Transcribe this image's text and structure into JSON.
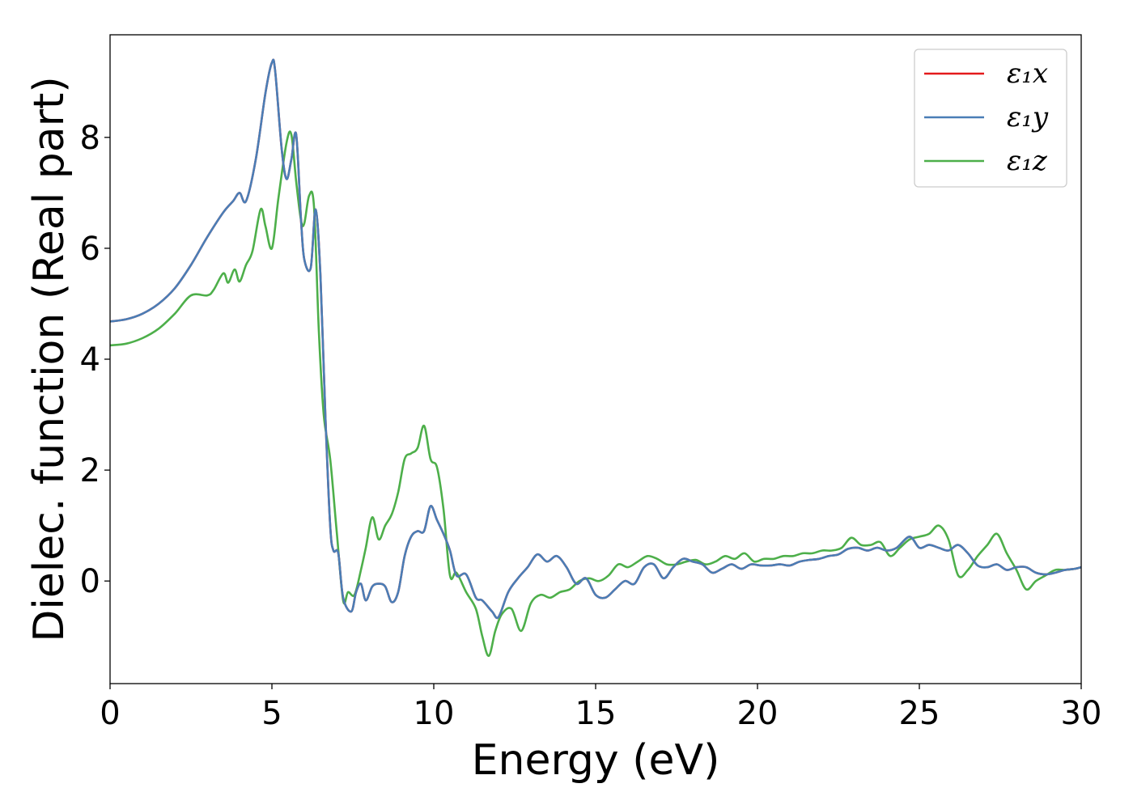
{
  "chart_data": {
    "type": "line",
    "xlabel": "Energy (eV)",
    "ylabel": "Dielec. function (Real part)",
    "xlim": [
      0,
      30
    ],
    "ylim": [
      -1.85,
      9.85
    ],
    "xticks": [
      0,
      5,
      10,
      15,
      20,
      25,
      30
    ],
    "yticks": [
      0,
      2,
      4,
      6,
      8
    ],
    "grid": false,
    "legend_position": "top-right",
    "series": [
      {
        "name": "ε₁x",
        "color": "#e41a1c",
        "x": [
          0,
          0.5,
          1,
          1.5,
          2,
          2.5,
          3,
          3.5,
          3.8,
          4,
          4.2,
          4.5,
          4.8,
          5,
          5.1,
          5.3,
          5.45,
          5.6,
          5.75,
          5.9,
          6,
          6.2,
          6.35,
          6.5,
          6.65,
          6.8,
          6.9,
          7.05,
          7.2,
          7.45,
          7.6,
          7.75,
          7.9,
          8.1,
          8.3,
          8.5,
          8.7,
          8.9,
          9.1,
          9.3,
          9.5,
          9.7,
          9.9,
          10.1,
          10.3,
          10.5,
          10.7,
          11,
          11.3,
          11.5,
          11.8,
          12,
          12.3,
          12.6,
          12.9,
          13.2,
          13.5,
          13.8,
          14.1,
          14.4,
          14.7,
          15,
          15.3,
          15.6,
          15.9,
          16.2,
          16.5,
          16.8,
          17.1,
          17.4,
          17.7,
          18,
          18.3,
          18.6,
          18.9,
          19.2,
          19.5,
          19.8,
          20.1,
          20.4,
          20.7,
          21,
          21.3,
          21.6,
          21.9,
          22.2,
          22.5,
          22.8,
          23.1,
          23.4,
          23.7,
          24,
          24.3,
          24.7,
          25,
          25.3,
          25.6,
          25.9,
          26.2,
          26.5,
          26.8,
          27.1,
          27.4,
          27.7,
          28,
          28.3,
          28.6,
          28.9,
          29.2,
          29.5,
          29.8,
          30
        ],
        "y": [
          4.68,
          4.72,
          4.82,
          5.0,
          5.28,
          5.7,
          6.2,
          6.65,
          6.85,
          7.0,
          6.85,
          7.6,
          8.8,
          9.35,
          9.2,
          7.8,
          7.25,
          7.6,
          8.05,
          6.5,
          5.8,
          5.65,
          6.7,
          5.5,
          3.0,
          1.0,
          0.55,
          0.5,
          -0.3,
          -0.55,
          -0.2,
          -0.05,
          -0.35,
          -0.1,
          -0.05,
          -0.1,
          -0.38,
          -0.2,
          0.45,
          0.8,
          0.9,
          0.9,
          1.35,
          1.1,
          0.85,
          0.55,
          0.1,
          0.12,
          -0.3,
          -0.35,
          -0.55,
          -0.65,
          -0.2,
          0.05,
          0.25,
          0.48,
          0.35,
          0.45,
          0.25,
          -0.05,
          0.05,
          -0.25,
          -0.3,
          -0.15,
          0.0,
          -0.05,
          0.25,
          0.3,
          0.05,
          0.25,
          0.4,
          0.35,
          0.3,
          0.15,
          0.22,
          0.3,
          0.22,
          0.3,
          0.28,
          0.28,
          0.3,
          0.28,
          0.35,
          0.38,
          0.4,
          0.45,
          0.48,
          0.58,
          0.6,
          0.55,
          0.6,
          0.55,
          0.6,
          0.8,
          0.6,
          0.65,
          0.6,
          0.55,
          0.65,
          0.5,
          0.28,
          0.25,
          0.3,
          0.2,
          0.25,
          0.25,
          0.15,
          0.12,
          0.15,
          0.2,
          0.22,
          0.25
        ]
      },
      {
        "name": "ε₁y",
        "color": "#4a7eb6",
        "x": [
          0,
          0.5,
          1,
          1.5,
          2,
          2.5,
          3,
          3.5,
          3.8,
          4,
          4.2,
          4.5,
          4.8,
          5,
          5.1,
          5.3,
          5.45,
          5.6,
          5.75,
          5.9,
          6,
          6.2,
          6.35,
          6.5,
          6.65,
          6.8,
          6.9,
          7.05,
          7.2,
          7.45,
          7.6,
          7.75,
          7.9,
          8.1,
          8.3,
          8.5,
          8.7,
          8.9,
          9.1,
          9.3,
          9.5,
          9.7,
          9.9,
          10.1,
          10.3,
          10.5,
          10.7,
          11,
          11.3,
          11.5,
          11.8,
          12,
          12.3,
          12.6,
          12.9,
          13.2,
          13.5,
          13.8,
          14.1,
          14.4,
          14.7,
          15,
          15.3,
          15.6,
          15.9,
          16.2,
          16.5,
          16.8,
          17.1,
          17.4,
          17.7,
          18,
          18.3,
          18.6,
          18.9,
          19.2,
          19.5,
          19.8,
          20.1,
          20.4,
          20.7,
          21,
          21.3,
          21.6,
          21.9,
          22.2,
          22.5,
          22.8,
          23.1,
          23.4,
          23.7,
          24,
          24.3,
          24.7,
          25,
          25.3,
          25.6,
          25.9,
          26.2,
          26.5,
          26.8,
          27.1,
          27.4,
          27.7,
          28,
          28.3,
          28.6,
          28.9,
          29.2,
          29.5,
          29.8,
          30
        ],
        "y": [
          4.68,
          4.72,
          4.82,
          5.0,
          5.28,
          5.7,
          6.2,
          6.65,
          6.85,
          7.0,
          6.85,
          7.6,
          8.8,
          9.35,
          9.2,
          7.8,
          7.25,
          7.6,
          8.05,
          6.5,
          5.8,
          5.65,
          6.7,
          5.5,
          3.0,
          1.0,
          0.55,
          0.5,
          -0.3,
          -0.55,
          -0.2,
          -0.05,
          -0.35,
          -0.1,
          -0.05,
          -0.1,
          -0.38,
          -0.2,
          0.45,
          0.8,
          0.9,
          0.9,
          1.35,
          1.1,
          0.85,
          0.55,
          0.1,
          0.12,
          -0.3,
          -0.35,
          -0.55,
          -0.65,
          -0.2,
          0.05,
          0.25,
          0.48,
          0.35,
          0.45,
          0.25,
          -0.05,
          0.05,
          -0.25,
          -0.3,
          -0.15,
          0.0,
          -0.05,
          0.25,
          0.3,
          0.05,
          0.25,
          0.4,
          0.35,
          0.3,
          0.15,
          0.22,
          0.3,
          0.22,
          0.3,
          0.28,
          0.28,
          0.3,
          0.28,
          0.35,
          0.38,
          0.4,
          0.45,
          0.48,
          0.58,
          0.6,
          0.55,
          0.6,
          0.55,
          0.6,
          0.8,
          0.6,
          0.65,
          0.6,
          0.55,
          0.65,
          0.5,
          0.28,
          0.25,
          0.3,
          0.2,
          0.25,
          0.25,
          0.15,
          0.12,
          0.15,
          0.2,
          0.22,
          0.25
        ]
      },
      {
        "name": "ε₁z",
        "color": "#4daf4a",
        "x": [
          0,
          0.5,
          1,
          1.5,
          2,
          2.5,
          3,
          3.2,
          3.5,
          3.65,
          3.85,
          4,
          4.2,
          4.4,
          4.65,
          4.8,
          5,
          5.2,
          5.45,
          5.6,
          5.75,
          5.9,
          6,
          6.15,
          6.3,
          6.45,
          6.6,
          6.8,
          7,
          7.2,
          7.35,
          7.55,
          7.75,
          7.9,
          8.1,
          8.3,
          8.5,
          8.7,
          8.9,
          9.1,
          9.3,
          9.5,
          9.7,
          9.9,
          10.1,
          10.3,
          10.5,
          10.7,
          11,
          11.3,
          11.5,
          11.7,
          11.9,
          12.1,
          12.4,
          12.7,
          13,
          13.3,
          13.6,
          13.9,
          14.2,
          14.5,
          14.8,
          15.1,
          15.4,
          15.7,
          16,
          16.3,
          16.6,
          16.9,
          17.2,
          17.5,
          17.8,
          18.1,
          18.4,
          18.7,
          19,
          19.3,
          19.6,
          19.9,
          20.2,
          20.5,
          20.8,
          21.1,
          21.4,
          21.7,
          22,
          22.3,
          22.6,
          22.9,
          23.2,
          23.5,
          23.8,
          24.1,
          24.4,
          24.7,
          25,
          25.3,
          25.6,
          25.9,
          26.2,
          26.5,
          26.8,
          27.1,
          27.4,
          27.7,
          28,
          28.3,
          28.6,
          28.9,
          29.2,
          29.5,
          29.8,
          30
        ],
        "y": [
          4.25,
          4.28,
          4.38,
          4.55,
          4.82,
          5.15,
          5.15,
          5.25,
          5.55,
          5.38,
          5.62,
          5.4,
          5.7,
          5.95,
          6.7,
          6.4,
          6.0,
          6.9,
          7.9,
          8.05,
          7.2,
          6.5,
          6.45,
          6.95,
          6.75,
          4.5,
          3.0,
          2.2,
          0.9,
          -0.35,
          -0.2,
          -0.25,
          0.2,
          0.6,
          1.15,
          0.75,
          1.0,
          1.2,
          1.6,
          2.2,
          2.3,
          2.4,
          2.8,
          2.2,
          2.05,
          1.3,
          0.1,
          0.15,
          -0.2,
          -0.5,
          -1.0,
          -1.35,
          -0.9,
          -0.6,
          -0.5,
          -0.9,
          -0.4,
          -0.25,
          -0.3,
          -0.2,
          -0.15,
          0.0,
          0.05,
          0.0,
          0.1,
          0.3,
          0.25,
          0.35,
          0.45,
          0.4,
          0.3,
          0.3,
          0.35,
          0.38,
          0.3,
          0.35,
          0.45,
          0.4,
          0.5,
          0.35,
          0.4,
          0.4,
          0.45,
          0.45,
          0.5,
          0.5,
          0.55,
          0.55,
          0.6,
          0.78,
          0.65,
          0.65,
          0.7,
          0.45,
          0.6,
          0.75,
          0.8,
          0.85,
          1.0,
          0.75,
          0.1,
          0.2,
          0.45,
          0.65,
          0.85,
          0.5,
          0.2,
          -0.15,
          0.0,
          0.1,
          0.2,
          0.2,
          0.22,
          0.25
        ]
      }
    ]
  }
}
